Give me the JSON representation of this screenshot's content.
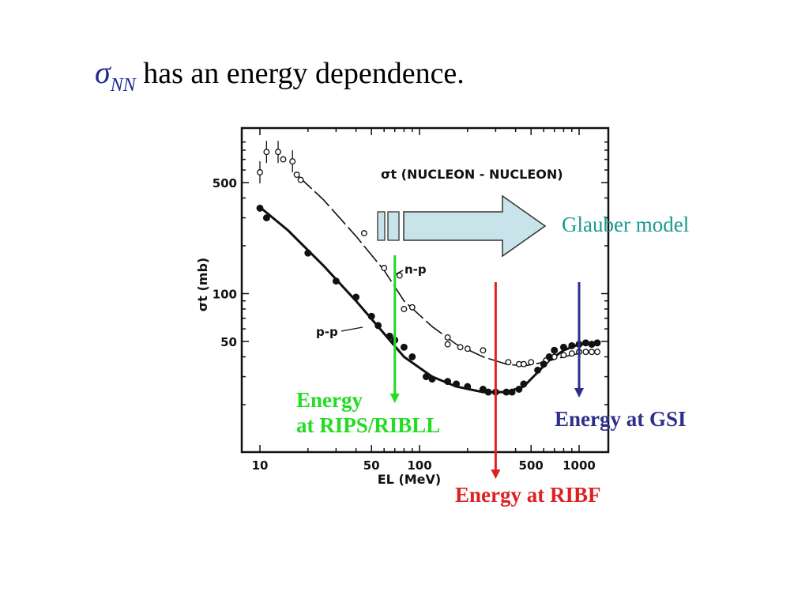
{
  "slide": {
    "title_symbol": "σ",
    "title_subscript": "NN",
    "title_text": " has an energy dependence.",
    "glauber_label": "Glauber model",
    "energy_rips_line1": "Energy",
    "energy_rips_line2": "at RIPS/RIBLL",
    "energy_gsi": "Energy at GSI",
    "energy_ribf": "Energy at RIBF",
    "colors": {
      "title_symbol": "#1f2a8f",
      "glauber": "#1a9a8f",
      "rips": "#22dd22",
      "gsi": "#2e2e8c",
      "ribf": "#e02020",
      "glauber_arrow_fill": "#c8e4ea"
    },
    "icons": [
      "right-arrow-icon",
      "down-arrow-icon"
    ],
    "marker_energies_MeV": {
      "rips": 70,
      "ribf": 300,
      "gsi": 1000
    }
  },
  "chart_data": {
    "type": "scatter",
    "title": "σt (NUCLEON - NUCLEON)",
    "xlabel": "EL (MeV)",
    "ylabel": "σt (mb)",
    "x_scale": "log",
    "y_scale": "log",
    "xlim": [
      9,
      1400
    ],
    "ylim": [
      18,
      1000
    ],
    "x_ticks": [
      10,
      50,
      100,
      500,
      1000
    ],
    "x_tick_labels": [
      "10",
      "50",
      "100",
      "500",
      "1000"
    ],
    "y_ticks": [
      50,
      100,
      500
    ],
    "y_tick_labels": [
      "50",
      "100",
      "500"
    ],
    "series": [
      {
        "name": "n-p",
        "marker": "open-circle",
        "curve": [
          [
            17,
            560
          ],
          [
            25,
            390
          ],
          [
            40,
            230
          ],
          [
            60,
            140
          ],
          [
            80,
            90
          ],
          [
            120,
            62
          ],
          [
            170,
            48
          ],
          [
            250,
            40
          ],
          [
            350,
            36
          ],
          [
            450,
            35
          ],
          [
            600,
            37
          ],
          [
            800,
            40
          ],
          [
            1000,
            42
          ],
          [
            1300,
            43
          ]
        ],
        "points": [
          [
            10,
            580
          ],
          [
            11,
            780
          ],
          [
            13,
            780
          ],
          [
            14,
            700
          ],
          [
            16,
            680
          ],
          [
            17,
            560
          ],
          [
            18,
            520
          ],
          [
            45,
            240
          ],
          [
            60,
            145
          ],
          [
            75,
            130
          ],
          [
            80,
            80
          ],
          [
            90,
            82
          ],
          [
            150,
            53
          ],
          [
            150,
            48
          ],
          [
            180,
            46
          ],
          [
            200,
            45
          ],
          [
            250,
            44
          ],
          [
            360,
            37
          ],
          [
            420,
            36
          ],
          [
            450,
            36
          ],
          [
            500,
            37
          ],
          [
            620,
            38
          ],
          [
            700,
            40
          ],
          [
            800,
            41
          ],
          [
            900,
            42
          ],
          [
            1000,
            43
          ],
          [
            1100,
            43
          ],
          [
            1200,
            43
          ],
          [
            1300,
            43
          ]
        ]
      },
      {
        "name": "p-p",
        "marker": "filled-circle",
        "curve": [
          [
            10,
            350
          ],
          [
            15,
            250
          ],
          [
            25,
            150
          ],
          [
            40,
            90
          ],
          [
            60,
            56
          ],
          [
            80,
            40
          ],
          [
            120,
            30
          ],
          [
            170,
            26
          ],
          [
            250,
            24
          ],
          [
            350,
            24
          ],
          [
            450,
            26
          ],
          [
            550,
            32
          ],
          [
            650,
            38
          ],
          [
            800,
            44
          ],
          [
            1000,
            48
          ],
          [
            1300,
            49
          ]
        ],
        "points": [
          [
            10,
            345
          ],
          [
            11,
            300
          ],
          [
            20,
            180
          ],
          [
            30,
            120
          ],
          [
            40,
            95
          ],
          [
            50,
            72
          ],
          [
            55,
            63
          ],
          [
            65,
            54
          ],
          [
            70,
            51
          ],
          [
            80,
            46
          ],
          [
            90,
            40
          ],
          [
            110,
            30
          ],
          [
            120,
            29
          ],
          [
            150,
            28
          ],
          [
            170,
            27
          ],
          [
            200,
            26
          ],
          [
            250,
            25
          ],
          [
            270,
            24
          ],
          [
            300,
            24
          ],
          [
            350,
            24
          ],
          [
            380,
            24
          ],
          [
            420,
            25
          ],
          [
            450,
            27
          ],
          [
            550,
            33
          ],
          [
            600,
            36
          ],
          [
            650,
            40
          ],
          [
            700,
            44
          ],
          [
            800,
            46
          ],
          [
            900,
            47
          ],
          [
            1000,
            48
          ],
          [
            1100,
            49
          ],
          [
            1200,
            48
          ],
          [
            1300,
            49
          ]
        ]
      }
    ],
    "annotations": [
      "n-p",
      "p-p"
    ]
  }
}
